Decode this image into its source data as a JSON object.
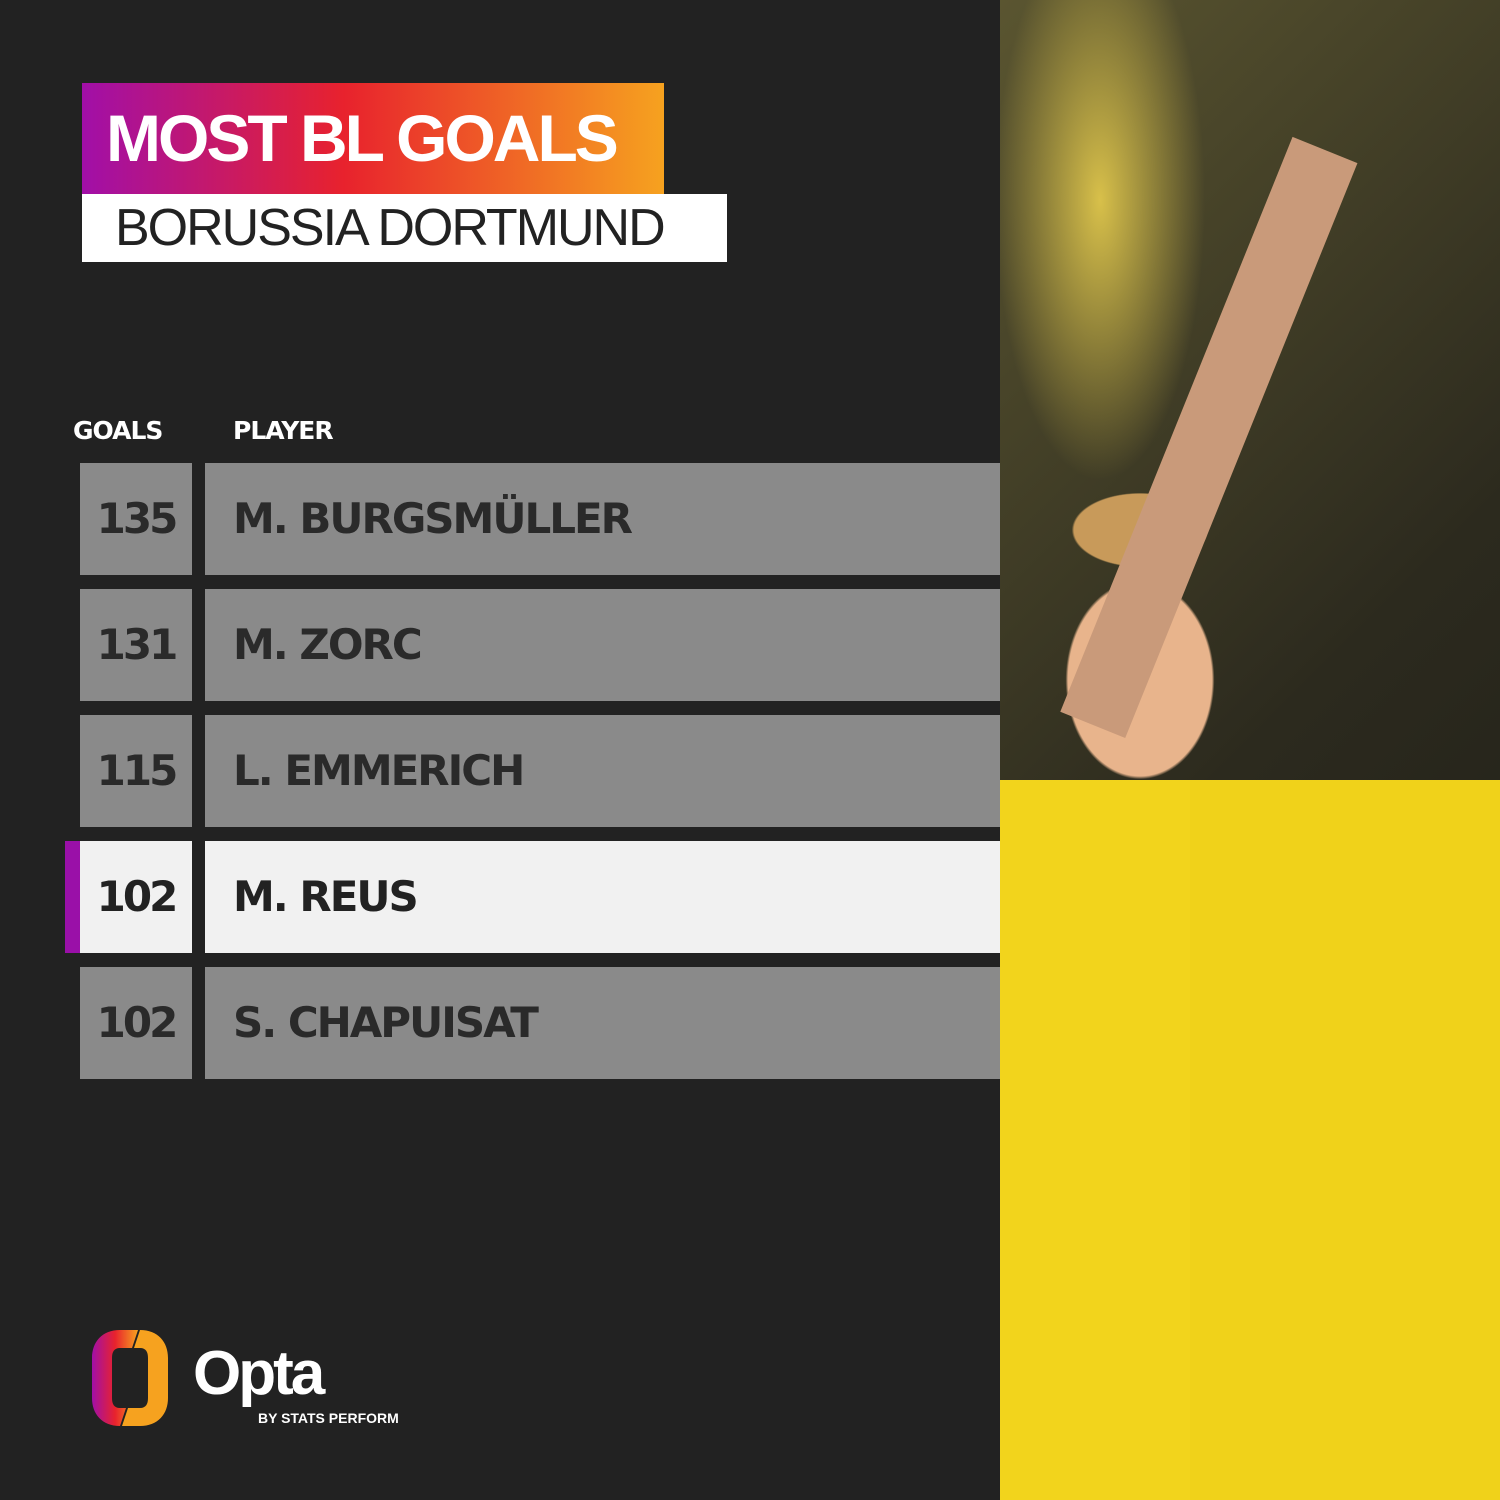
{
  "header": {
    "title": "MOST BL GOALS",
    "subtitle": "BORUSSIA DORTMUND"
  },
  "chart_data": {
    "type": "table",
    "title": "MOST BL GOALS",
    "subtitle": "BORUSSIA DORTMUND",
    "columns": [
      "GOALS",
      "PLAYER"
    ],
    "rows": [
      {
        "goals": 135,
        "player": "M. BURGSMÜLLER",
        "highlighted": false
      },
      {
        "goals": 131,
        "player": "M. ZORC",
        "highlighted": false
      },
      {
        "goals": 115,
        "player": "L. EMMERICH",
        "highlighted": false
      },
      {
        "goals": 102,
        "player": "M. REUS",
        "highlighted": true
      },
      {
        "goals": 102,
        "player": "S. CHAPUISAT",
        "highlighted": false
      }
    ],
    "highlight_color": "#9a10a8"
  },
  "logo": {
    "name": "Opta",
    "tagline": "BY STATS PERFORM"
  },
  "colors": {
    "background": "#222222",
    "row": "#8a8a8a",
    "highlight_row": "#f1f1f1",
    "gradient": [
      "#a10fa8",
      "#e8222d",
      "#f6a21f"
    ]
  }
}
